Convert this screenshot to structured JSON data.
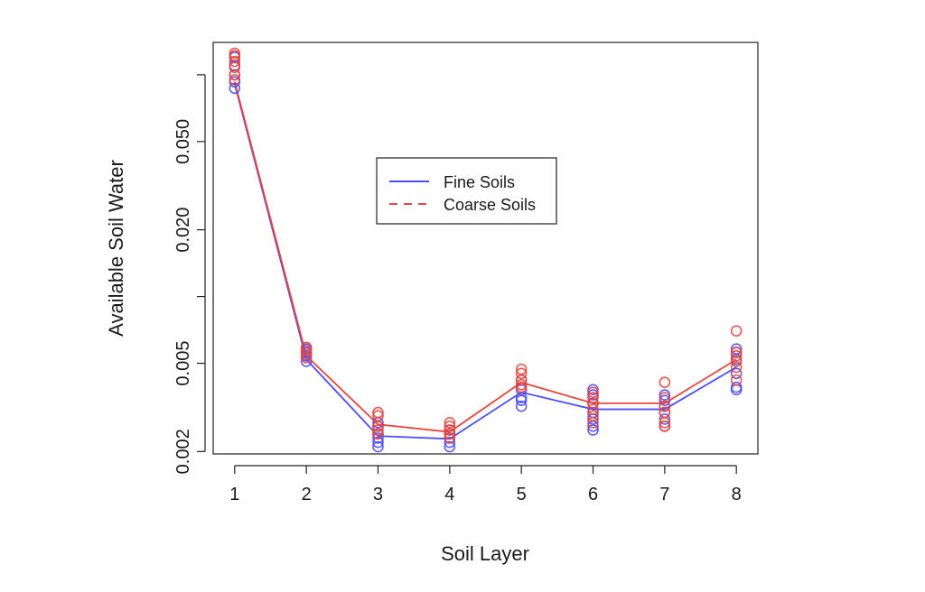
{
  "chart_data": {
    "type": "line",
    "title": "",
    "xlabel": "Soil Layer",
    "ylabel": "Available Soil Water",
    "y_scale": "log",
    "x_ticks": [
      1,
      2,
      3,
      4,
      5,
      6,
      7,
      8
    ],
    "y_ticks": [
      {
        "value": 0.002,
        "label": "0.002"
      },
      {
        "value": 0.005,
        "label": "0.005"
      },
      {
        "value": 0.01,
        "label": ""
      },
      {
        "value": 0.02,
        "label": "0.020"
      },
      {
        "value": 0.05,
        "label": "0.050"
      },
      {
        "value": 0.1,
        "label": ""
      }
    ],
    "xlim": [
      0.7,
      8.3
    ],
    "ylim": [
      0.00195,
      0.14
    ],
    "grid": false,
    "legend": {
      "placement": "center",
      "entries": [
        {
          "name": "Fine Soils",
          "color": "#4d4dff",
          "style": "solid"
        },
        {
          "name": "Coarse Soils",
          "color": "#e8463a",
          "style": "dashed"
        }
      ]
    },
    "series": [
      {
        "name": "Fine Soils",
        "color": "#4d4dff",
        "x": [
          1,
          2,
          3,
          4,
          5,
          6,
          7,
          8
        ],
        "values": [
          0.091,
          0.0052,
          0.00235,
          0.00228,
          0.0037,
          0.0031,
          0.0031,
          0.0048
        ],
        "points": [
          [
            0.087,
            0.093,
            0.1,
            0.11,
            0.12
          ],
          [
            0.0051,
            0.0054,
            0.0056,
            0.0058
          ],
          [
            0.0021,
            0.0022,
            0.0023,
            0.0024,
            0.0026,
            0.0027
          ],
          [
            0.0021,
            0.0022,
            0.0023,
            0.0024,
            0.0025
          ],
          [
            0.0032,
            0.0034,
            0.0035,
            0.0038,
            0.0042
          ],
          [
            0.0025,
            0.0026,
            0.0028,
            0.003,
            0.0033,
            0.0036,
            0.0038
          ],
          [
            0.0026,
            0.0028,
            0.003,
            0.0032,
            0.0034,
            0.0036
          ],
          [
            0.0038,
            0.0039,
            0.0045,
            0.0052,
            0.0056,
            0.0058
          ]
        ]
      },
      {
        "name": "Coarse Soils",
        "color": "#e8463a",
        "x": [
          1,
          2,
          3,
          4,
          5,
          6,
          7,
          8
        ],
        "values": [
          0.093,
          0.0054,
          0.00265,
          0.00245,
          0.0041,
          0.0033,
          0.0033,
          0.0052
        ],
        "points": [
          [
            0.095,
            0.1,
            0.108,
            0.115,
            0.122,
            0.125
          ],
          [
            0.0053,
            0.0055,
            0.0057,
            0.0059
          ],
          [
            0.0024,
            0.0025,
            0.0026,
            0.0029,
            0.003
          ],
          [
            0.0023,
            0.0024,
            0.0025,
            0.0026,
            0.0027
          ],
          [
            0.0039,
            0.004,
            0.0042,
            0.0045,
            0.0047
          ],
          [
            0.0027,
            0.0029,
            0.0031,
            0.0033,
            0.0035,
            0.0037
          ],
          [
            0.0026,
            0.0027,
            0.003,
            0.0032,
            0.0035,
            0.0041
          ],
          [
            0.0042,
            0.0048,
            0.0051,
            0.0054,
            0.0056,
            0.007
          ]
        ]
      }
    ]
  }
}
